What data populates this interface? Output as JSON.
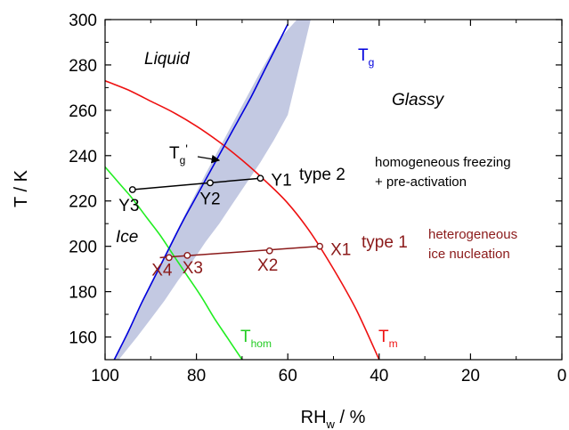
{
  "chart_data": {
    "type": "line",
    "xlabel": "RH",
    "xlabel_sub": "w",
    "xlabel_unit": " / %",
    "ylabel": "T / K",
    "xlim": [
      100,
      0
    ],
    "ylim": [
      150,
      300
    ],
    "x_ticks": [
      100,
      80,
      60,
      40,
      20,
      0
    ],
    "y_ticks": [
      160,
      180,
      200,
      220,
      240,
      260,
      280,
      300
    ],
    "grid": false,
    "colors": {
      "tg": "#0000dd",
      "tg_band": "#c3c9e2",
      "tm": "#ee1111",
      "thom": "#22ee22",
      "type1": "#8b1a1a",
      "type2": "#000000"
    },
    "series": [
      {
        "key": "tg",
        "label": "T",
        "label_sub": "g",
        "x": [
          98,
          95,
          92,
          89,
          86,
          83,
          80,
          77,
          74,
          71,
          68,
          65,
          62,
          60
        ],
        "y": [
          150,
          162,
          175,
          187,
          199,
          211,
          222,
          233,
          244,
          255,
          266,
          278,
          290,
          298
        ]
      },
      {
        "key": "tm",
        "label": "T",
        "label_sub": "m",
        "x": [
          100,
          95,
          90,
          85,
          80,
          75,
          70,
          65,
          60,
          55,
          50,
          45,
          40
        ],
        "y": [
          273,
          269,
          264,
          259,
          253,
          246,
          238,
          229,
          219,
          206,
          190,
          172,
          150
        ]
      },
      {
        "key": "thom",
        "label": "T",
        "label_sub": "hom",
        "x": [
          100,
          97,
          94,
          91,
          88,
          85,
          82,
          79,
          76,
          73,
          70
        ],
        "y": [
          235,
          228,
          221,
          213,
          205,
          196,
          187,
          178,
          168,
          159,
          150
        ]
      }
    ],
    "tg_band": {
      "x_upper": [
        98,
        94,
        90,
        86,
        82,
        78,
        74,
        70,
        66,
        62,
        58,
        55
      ],
      "y_upper": [
        150,
        167,
        184,
        200,
        216,
        232,
        247,
        262,
        277,
        291,
        300,
        300
      ],
      "x_lower": [
        97,
        93,
        90,
        87,
        84,
        81,
        78,
        75,
        72,
        69,
        66,
        63,
        60
      ],
      "y_lower": [
        150,
        160,
        168,
        176,
        185,
        193,
        202,
        210,
        219,
        228,
        237,
        247,
        258
      ]
    },
    "type1": {
      "label": "type 1",
      "line": [
        [
          88,
          195
        ],
        [
          53,
          200
        ]
      ],
      "points": [
        {
          "name": "X1",
          "x": 53,
          "y": 200
        },
        {
          "name": "X2",
          "x": 64,
          "y": 198
        },
        {
          "name": "X3",
          "x": 82,
          "y": 196
        },
        {
          "name": "X4",
          "x": 86,
          "y": 195
        }
      ]
    },
    "type2": {
      "label": "type 2",
      "line": [
        [
          94,
          225
        ],
        [
          66,
          230
        ]
      ],
      "points": [
        {
          "name": "Y1",
          "x": 66,
          "y": 230
        },
        {
          "name": "Y2",
          "x": 77,
          "y": 228
        },
        {
          "name": "Y3",
          "x": 94,
          "y": 225
        }
      ]
    },
    "annotations": {
      "liquid": "Liquid",
      "glassy": "Glassy",
      "ice": "Ice",
      "tg_prime": "T",
      "tg_prime_sub": "g",
      "tg_prime_suffix": "'",
      "homog_1": "homogeneous freezing",
      "homog_2": "+ pre-activation",
      "hetero_1": "heterogeneous",
      "hetero_2": "ice nucleation"
    }
  }
}
